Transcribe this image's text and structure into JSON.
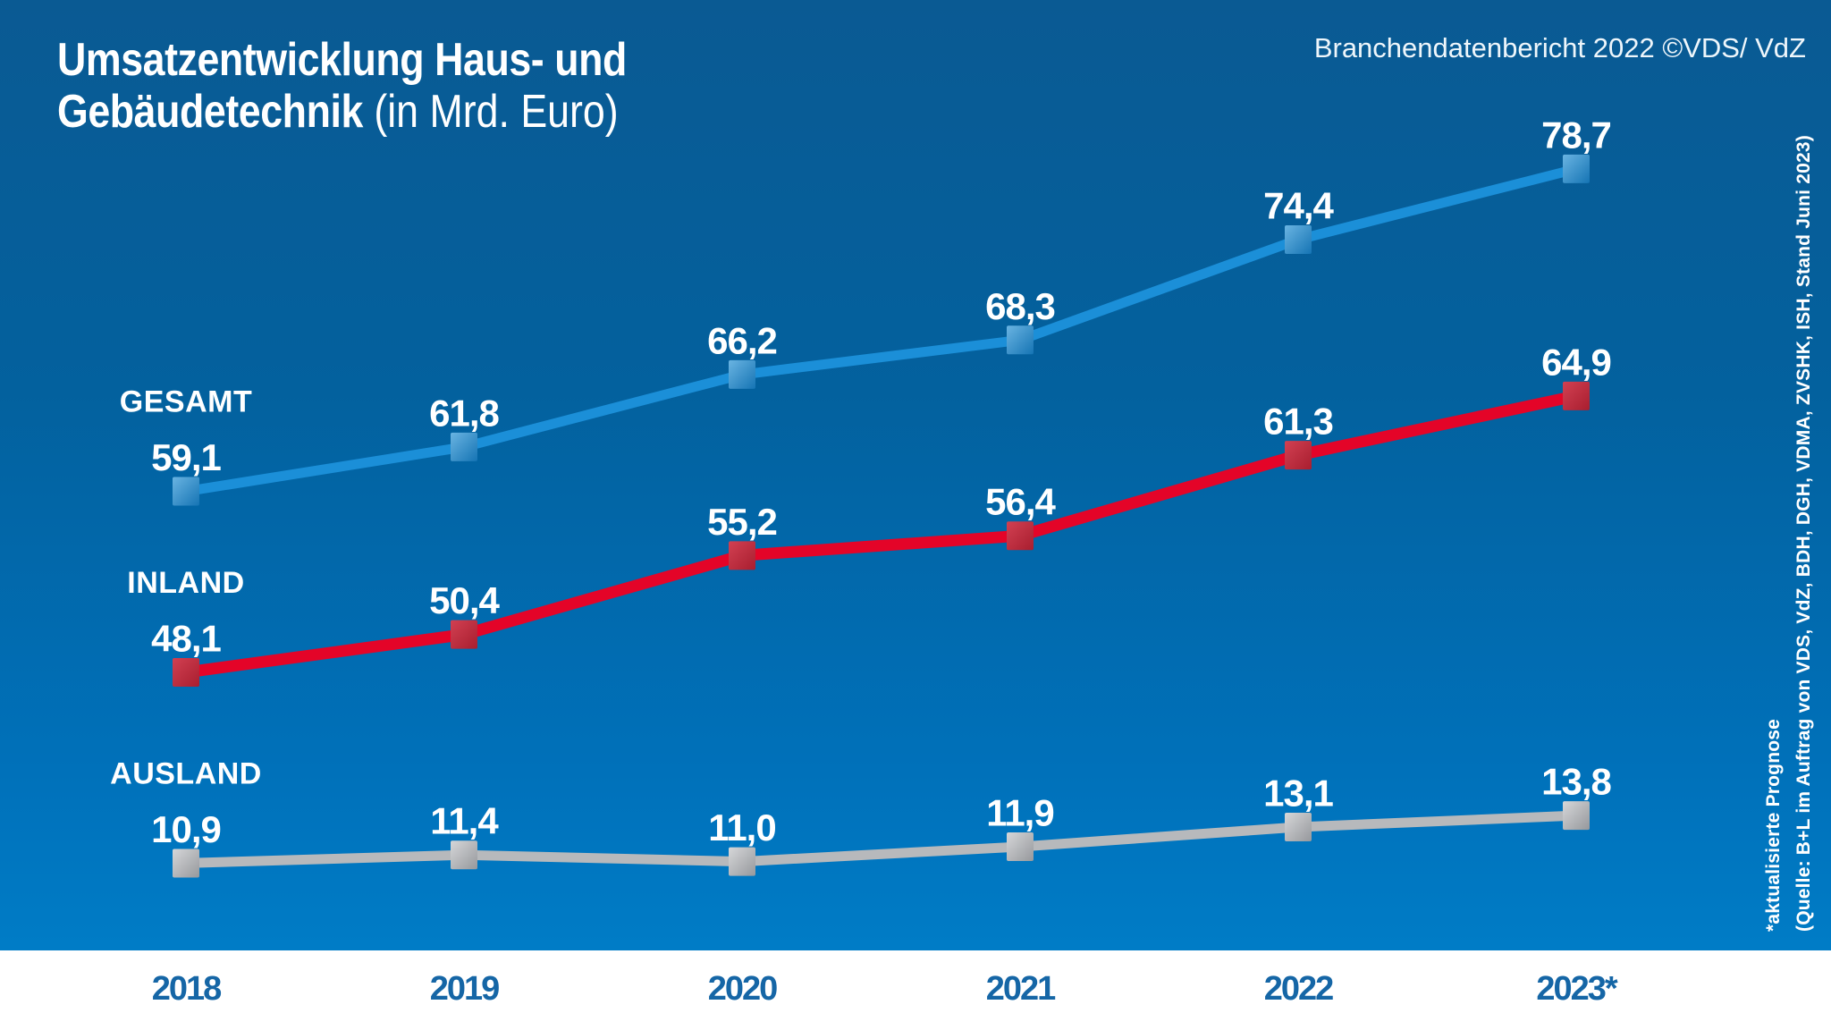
{
  "header": {
    "title_line1": "Umsatzentwicklung Haus- und",
    "title_line2_bold": "Gebäudetechnik",
    "title_line2_rest": " (in Mrd. Euro)",
    "source_badge": "Branchendatenbericht 2022 ©VDS/ VdZ"
  },
  "footnote": {
    "line1": "*aktualisierte Prognose",
    "line2": "(Quelle: B+L im Auftrag von VDS, VdZ, BDH, DGH, VDMA, ZVSHK, ISH, Stand Juni 2023)"
  },
  "chart_data": {
    "type": "line",
    "title": "Umsatzentwicklung Haus- und Gebäudetechnik (in Mrd. Euro)",
    "unit": "Mrd. Euro",
    "categories": [
      "2018",
      "2019",
      "2020",
      "2021",
      "2022",
      "2023*"
    ],
    "series": [
      {
        "name": "GESAMT",
        "values": [
          59.1,
          61.8,
          66.2,
          68.3,
          74.4,
          78.7
        ],
        "line_color": "#1b8fd8",
        "marker_light": "#6ab4e2",
        "marker_dark": "#1574b4"
      },
      {
        "name": "INLAND",
        "values": [
          48.1,
          50.4,
          55.2,
          56.4,
          61.3,
          64.9
        ],
        "line_color": "#e40428",
        "marker_light": "#d24052",
        "marker_dark": "#a81e2f"
      },
      {
        "name": "AUSLAND",
        "values": [
          10.9,
          11.4,
          11.0,
          11.9,
          13.1,
          13.8
        ],
        "line_color": "#b7b9bc",
        "marker_light": "#d6d7d9",
        "marker_dark": "#96989c"
      }
    ],
    "value_label_color": "#ffffff",
    "year_label_color": "#1566a6",
    "grid": false,
    "legend_position": "inline-left",
    "decimal_separator": ","
  },
  "colors": {
    "bg_top": "#0a5a93",
    "bg_bottom": "#0081cc",
    "bottom_band": "#ffffff"
  }
}
